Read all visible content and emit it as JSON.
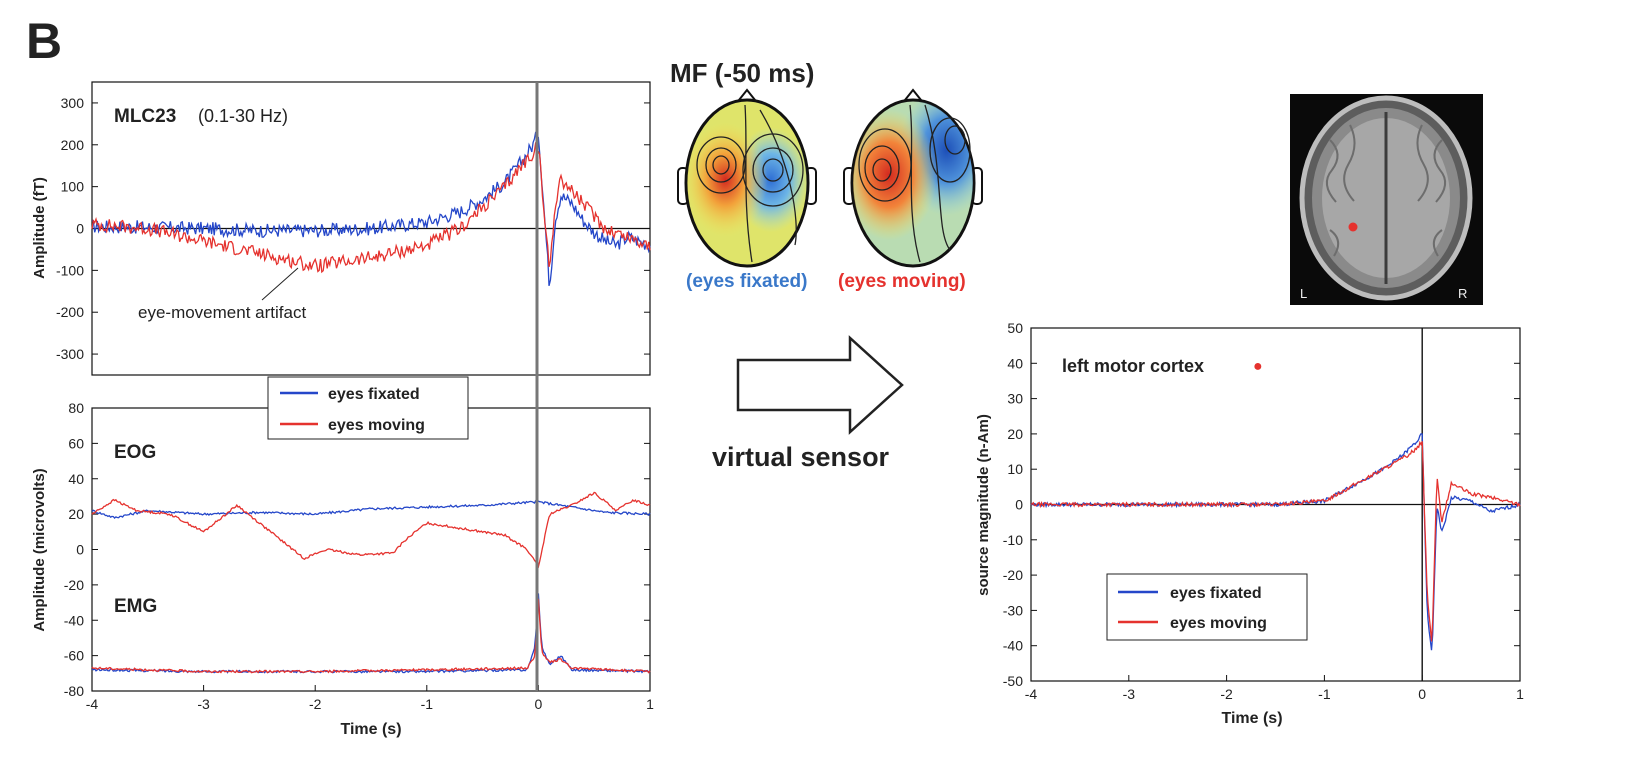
{
  "panel_label": "B",
  "colors": {
    "fixated": "#2547c9",
    "moving": "#e5322e",
    "axis": "#111111"
  },
  "meg_panel": {
    "sensor_name": "MLC23",
    "sensor_band": "(0.1-30 Hz)",
    "annotation": "eye-movement artifact"
  },
  "eog_emg_panel": {
    "eog_label": "EOG",
    "emg_label": "EMG"
  },
  "legend_main": {
    "fixated": "eyes fixated",
    "moving": "eyes moving"
  },
  "topo": {
    "title": "MF (-50 ms)",
    "label_fixated": "(eyes fixated)",
    "label_moving": "(eyes moving)"
  },
  "arrow_label": "virtual sensor",
  "mri": {
    "left": "L",
    "right": "R"
  },
  "source_panel": {
    "title": "left motor cortex",
    "bullet": "●"
  },
  "legend_source": {
    "fixated": "eyes fixated",
    "moving": "eyes moving"
  },
  "chart_data": [
    {
      "type": "line",
      "ylabel": "Amplitude (fT)",
      "xlim": [
        -4,
        1
      ],
      "ylim": [
        -350,
        350
      ],
      "yticks": [
        300,
        200,
        100,
        0,
        -100,
        -200,
        -300
      ],
      "series": [
        {
          "name": "eyes fixated",
          "x": [
            -4,
            -3.5,
            -3,
            -2.5,
            -2,
            -1.5,
            -1,
            -0.7,
            -0.5,
            -0.3,
            -0.15,
            -0.05,
            0,
            0.05,
            0.1,
            0.15,
            0.2,
            0.3,
            0.4,
            0.5,
            0.6,
            0.7,
            0.8,
            0.9,
            1
          ],
          "y": [
            5,
            3,
            0,
            -5,
            -5,
            0,
            15,
            40,
            70,
            110,
            160,
            200,
            230,
            50,
            -140,
            20,
            80,
            60,
            20,
            -10,
            -30,
            -40,
            -20,
            -30,
            -40
          ]
        },
        {
          "name": "eyes moving",
          "x": [
            -4,
            -3.5,
            -3,
            -2.5,
            -2,
            -1.5,
            -1,
            -0.7,
            -0.5,
            -0.3,
            -0.15,
            -0.05,
            0,
            0.05,
            0.1,
            0.15,
            0.2,
            0.3,
            0.4,
            0.5,
            0.6,
            0.7,
            0.8,
            0.9,
            1
          ],
          "y": [
            10,
            0,
            -30,
            -60,
            -90,
            -70,
            -40,
            0,
            50,
            100,
            150,
            180,
            200,
            40,
            -100,
            60,
            120,
            90,
            60,
            30,
            0,
            -10,
            -20,
            -30,
            -40
          ]
        }
      ]
    },
    {
      "type": "line",
      "ylabel": "Amplitude (microvolts)",
      "xlabel": "Time (s)",
      "xlim": [
        -4,
        1
      ],
      "ylim": [
        -80,
        80
      ],
      "xticks": [
        -4,
        -3,
        -2,
        -1,
        0,
        1
      ],
      "yticks": [
        80,
        60,
        40,
        20,
        0,
        -20,
        -40,
        -60,
        -80
      ],
      "series": [
        {
          "name": "eyes fixated (EOG)",
          "x": [
            -4,
            -3.8,
            -3.5,
            -3,
            -2.5,
            -2,
            -1.5,
            -1,
            -0.5,
            0,
            0.3,
            0.6,
            1
          ],
          "y": [
            22,
            18,
            22,
            20,
            21,
            20,
            23,
            24,
            25,
            27,
            24,
            21,
            20
          ]
        },
        {
          "name": "eyes moving (EOG)",
          "x": [
            -4,
            -3.8,
            -3.6,
            -3.3,
            -3,
            -2.7,
            -2.5,
            -2.3,
            -2.1,
            -1.9,
            -1.6,
            -1.3,
            -1.2,
            -1.0,
            -0.7,
            -0.5,
            -0.3,
            -0.1,
            0,
            0.1,
            0.3,
            0.5,
            0.7,
            0.85,
            1
          ],
          "y": [
            20,
            28,
            22,
            20,
            10,
            25,
            15,
            5,
            -5,
            0,
            -3,
            -2,
            5,
            15,
            12,
            10,
            8,
            0,
            -10,
            20,
            25,
            32,
            22,
            28,
            25
          ]
        },
        {
          "name": "eyes fixated (EMG)",
          "x": [
            -4,
            -3,
            -2,
            -1,
            -0.1,
            -0.03,
            0,
            0.03,
            0.1,
            0.2,
            0.3,
            1
          ],
          "y": [
            -68,
            -69,
            -69,
            -69,
            -68,
            -55,
            -25,
            -55,
            -65,
            -60,
            -68,
            -69
          ]
        },
        {
          "name": "eyes moving (EMG)",
          "x": [
            -4,
            -3,
            -2,
            -1,
            -0.1,
            -0.03,
            0,
            0.03,
            0.1,
            0.2,
            0.3,
            1
          ],
          "y": [
            -67,
            -69,
            -69,
            -68,
            -67,
            -60,
            -28,
            -58,
            -64,
            -62,
            -67,
            -69
          ]
        }
      ]
    },
    {
      "type": "line",
      "ylabel": "source magnitude (n-Am)",
      "xlabel": "Time (s)",
      "xlim": [
        -4,
        1
      ],
      "ylim": [
        -50,
        50
      ],
      "xticks": [
        -4,
        -3,
        -2,
        -1,
        0,
        1
      ],
      "yticks": [
        50,
        40,
        30,
        20,
        10,
        0,
        -10,
        -20,
        -30,
        -40,
        -50
      ],
      "series": [
        {
          "name": "eyes fixated",
          "x": [
            -4,
            -3.5,
            -3,
            -2.5,
            -2,
            -1.5,
            -1,
            -0.8,
            -0.6,
            -0.4,
            -0.2,
            -0.05,
            0,
            0.05,
            0.1,
            0.15,
            0.2,
            0.3,
            0.5,
            0.7,
            1
          ],
          "y": [
            0,
            0,
            0,
            0,
            0,
            0,
            1,
            4,
            7,
            10,
            14,
            18,
            20,
            -30,
            -43,
            0,
            -8,
            2,
            1,
            -2,
            0
          ]
        },
        {
          "name": "eyes moving",
          "x": [
            -4,
            -3.5,
            -3,
            -2.5,
            -2,
            -1.5,
            -1,
            -0.8,
            -0.6,
            -0.4,
            -0.2,
            -0.05,
            0,
            0.05,
            0.1,
            0.15,
            0.2,
            0.3,
            0.5,
            0.7,
            1
          ],
          "y": [
            0,
            0,
            0,
            0,
            0,
            0,
            1,
            4,
            7,
            10,
            13,
            16,
            18,
            -25,
            -40,
            8,
            -5,
            6,
            3,
            2,
            0
          ]
        }
      ]
    }
  ]
}
